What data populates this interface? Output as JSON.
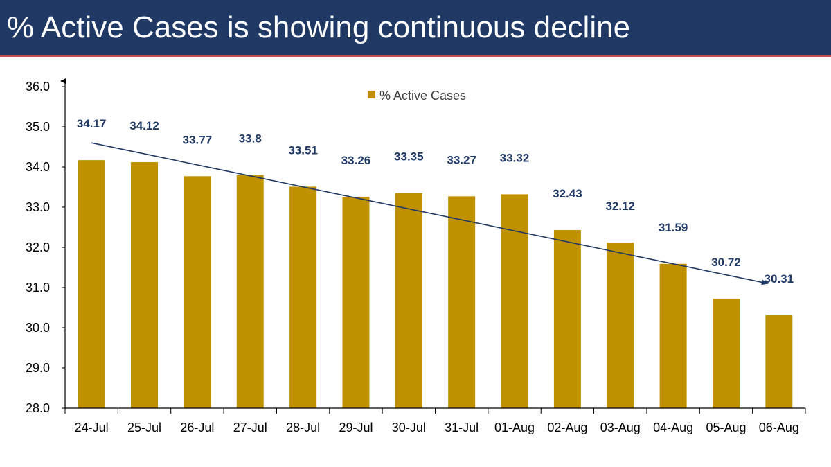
{
  "header": {
    "title": "% Active Cases is showing continuous decline",
    "background": "#1f3864",
    "accent_line": "#c0504d"
  },
  "chart_data": {
    "type": "bar",
    "title": "% Active Cases is showing continuous decline",
    "xlabel": "",
    "ylabel": "",
    "ylim": [
      28.0,
      36.0
    ],
    "yticks": [
      "28.0",
      "29.0",
      "30.0",
      "31.0",
      "32.0",
      "33.0",
      "34.0",
      "35.0",
      "36.0"
    ],
    "grid": false,
    "legend_position": "top-center",
    "categories": [
      "24-Jul",
      "25-Jul",
      "26-Jul",
      "27-Jul",
      "28-Jul",
      "29-Jul",
      "30-Jul",
      "31-Jul",
      "01-Aug",
      "02-Aug",
      "03-Aug",
      "04-Aug",
      "05-Aug",
      "06-Aug"
    ],
    "series": [
      {
        "name": "% Active Cases",
        "values": [
          34.17,
          34.12,
          33.77,
          33.8,
          33.51,
          33.26,
          33.35,
          33.27,
          33.32,
          32.43,
          32.12,
          31.59,
          30.72,
          30.31
        ],
        "labels": [
          "34.17",
          "34.12",
          "33.77",
          "33.8",
          "33.51",
          "33.26",
          "33.35",
          "33.27",
          "33.32",
          "32.43",
          "32.12",
          "31.59",
          "30.72",
          "30.31"
        ],
        "color": "#bf9000"
      }
    ],
    "trend_arrow": {
      "from_value": 34.6,
      "to_value": 31.1,
      "color": "#1f3864"
    },
    "label_color": "#1f3864"
  }
}
